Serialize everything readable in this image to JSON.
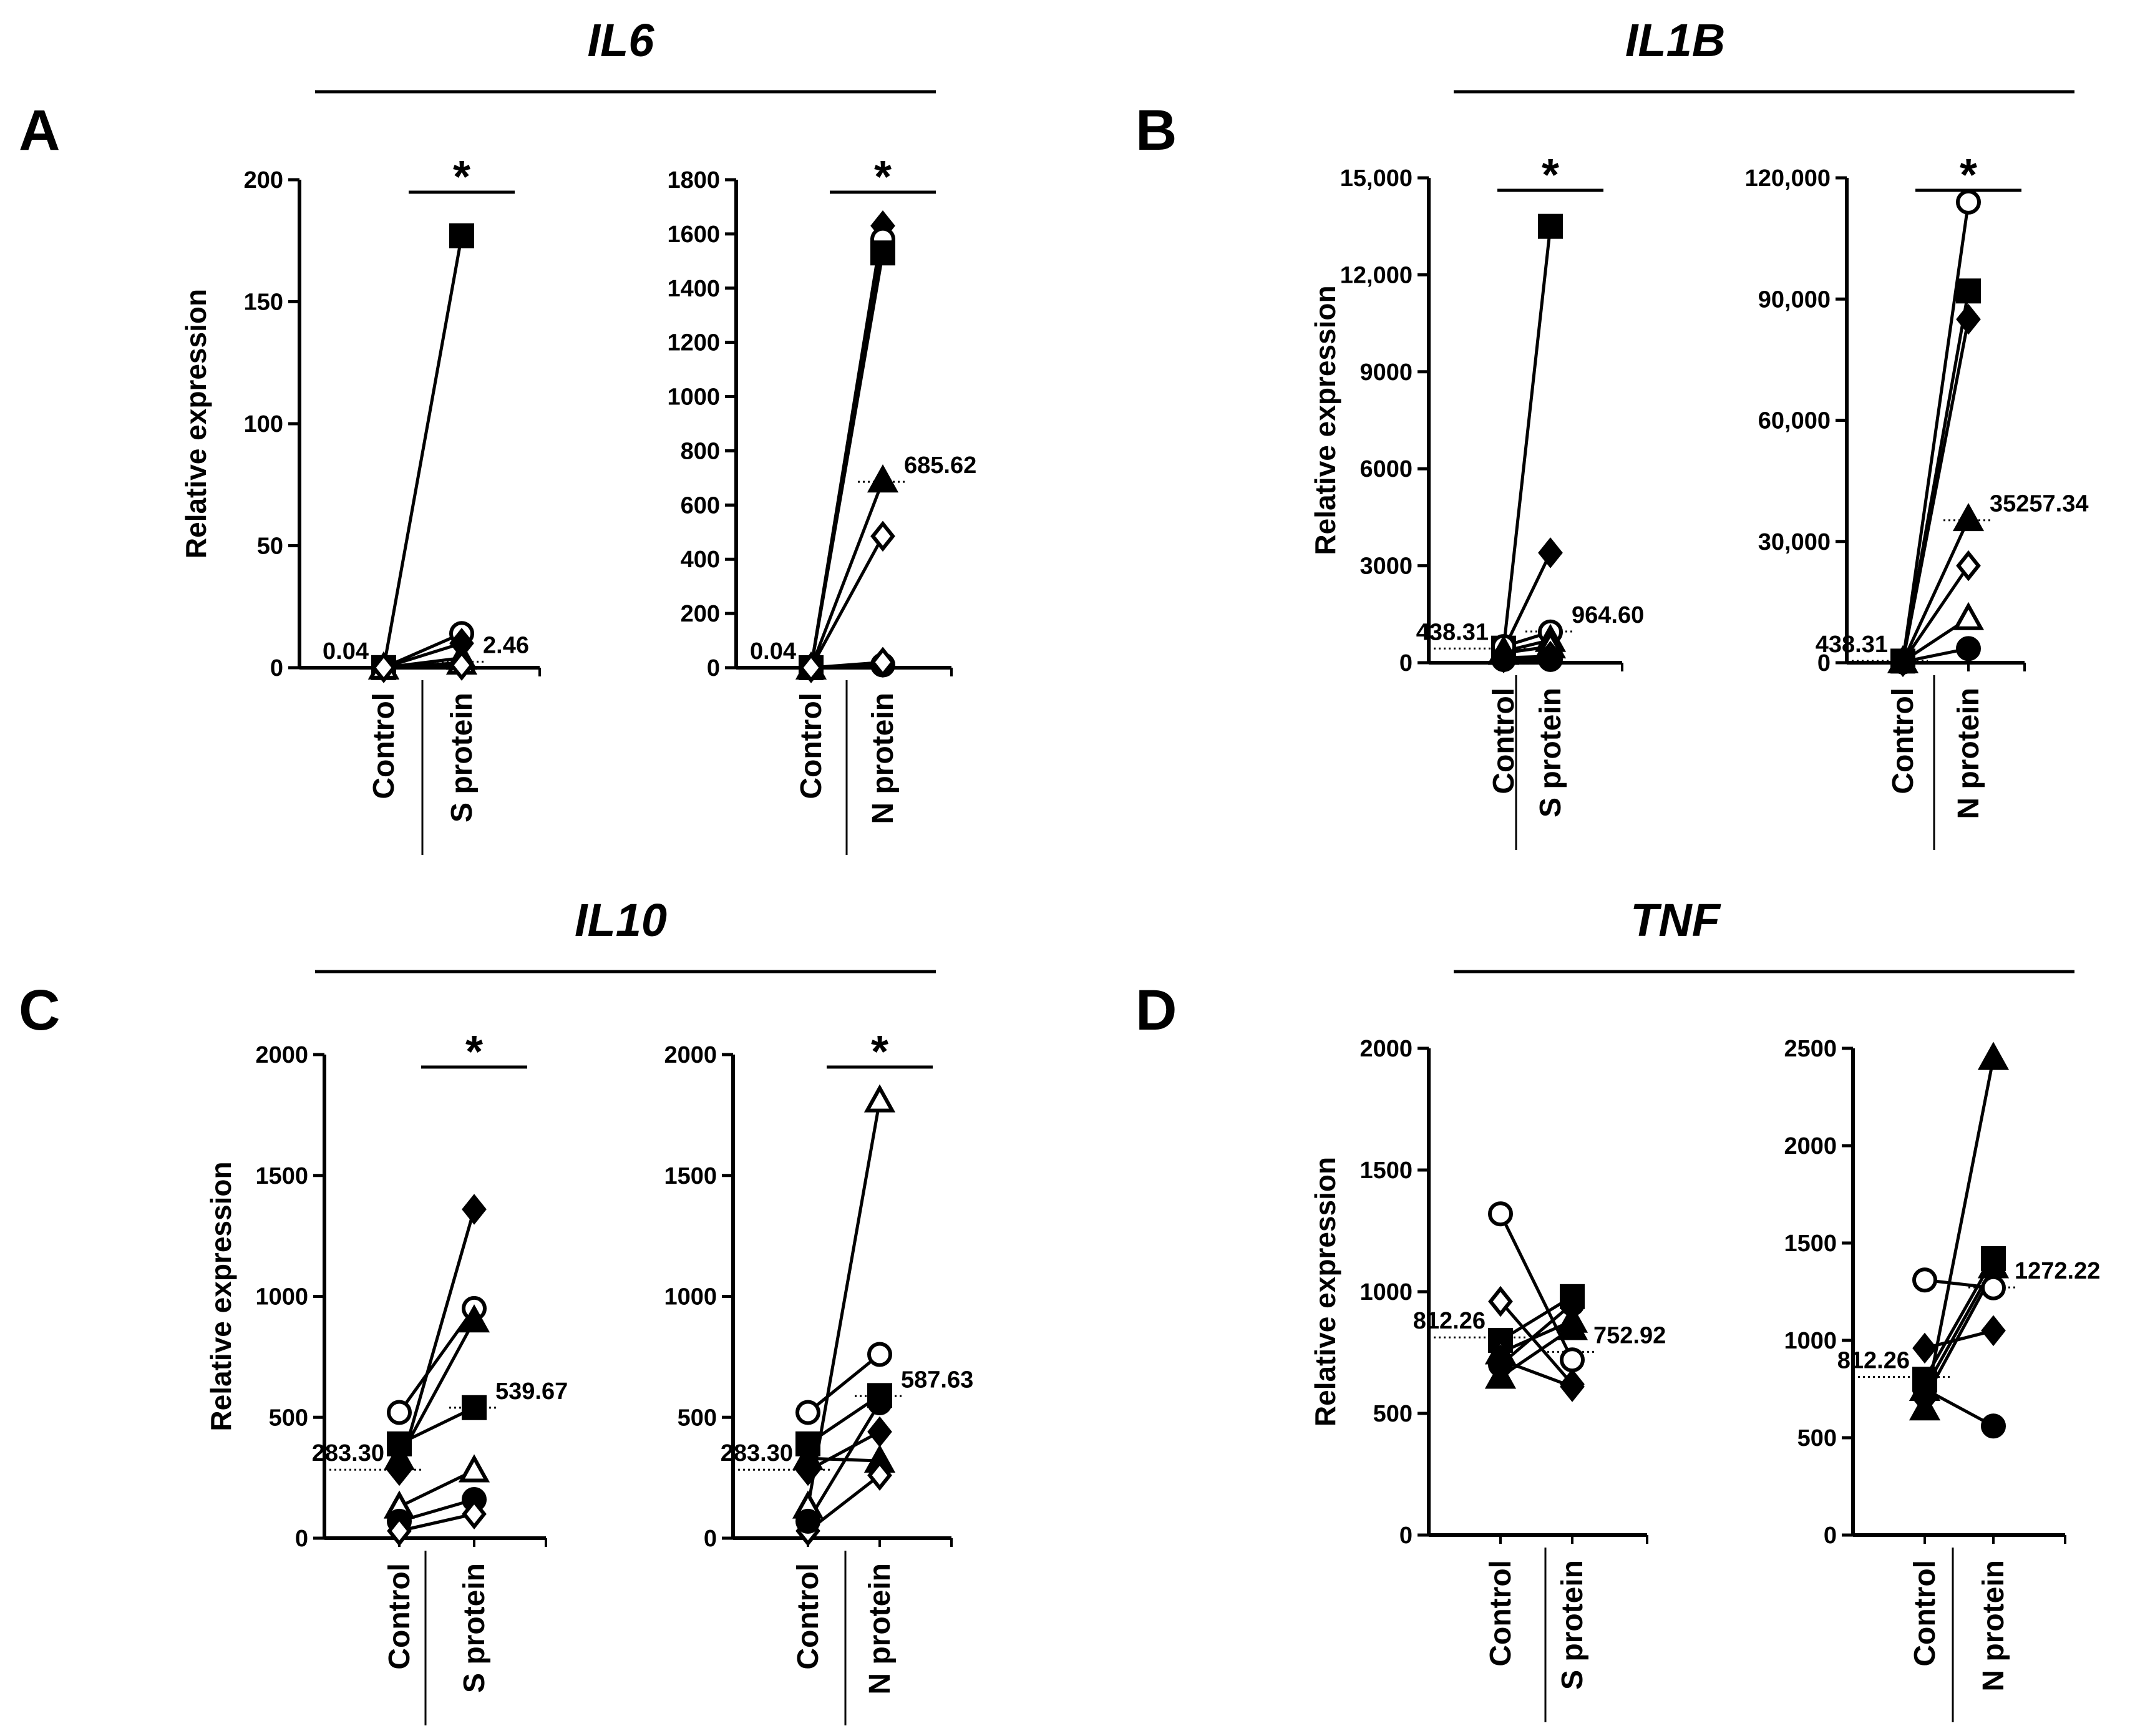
{
  "colors": {
    "ink": "#000000",
    "background": "#ffffff"
  },
  "figure": {
    "groups": [
      {
        "letter": "A",
        "gene": "IL6"
      },
      {
        "letter": "B",
        "gene": "IL1B"
      },
      {
        "letter": "C",
        "gene": "IL10"
      },
      {
        "letter": "D",
        "gene": "TNF"
      }
    ]
  },
  "chart_data": [
    {
      "type": "line",
      "panel": "A",
      "gene": "IL6",
      "ylabel": "Relative expression",
      "ylim": [
        0,
        200
      ],
      "yticks": [
        0,
        50,
        100,
        150,
        200
      ],
      "ytick_labels": [
        "0",
        "50",
        "100",
        "150",
        "200"
      ],
      "categories": [
        "Control",
        "S protein"
      ],
      "significance": "*",
      "annotations": {
        "control_median": "0.04",
        "treated_median": "2.46"
      },
      "series": [
        {
          "marker": "square-filled",
          "values": [
            0.05,
            177
          ]
        },
        {
          "marker": "circle-open",
          "values": [
            0.04,
            14
          ]
        },
        {
          "marker": "diamond-filled",
          "values": [
            0.03,
            10
          ]
        },
        {
          "marker": "triangle-filled",
          "values": [
            0.04,
            4
          ]
        },
        {
          "marker": "triangle-open",
          "values": [
            0.04,
            2
          ]
        },
        {
          "marker": "diamond-open",
          "values": [
            0.02,
            1
          ]
        }
      ]
    },
    {
      "type": "line",
      "panel": "A",
      "gene": "IL6",
      "ylabel": "",
      "ylim": [
        0,
        1800
      ],
      "yticks": [
        0,
        200,
        400,
        600,
        800,
        1000,
        1200,
        1400,
        1600,
        1800
      ],
      "ytick_labels": [
        "0",
        "200",
        "400",
        "600",
        "800",
        "1000",
        "1200",
        "1400",
        "1600",
        "1800"
      ],
      "categories": [
        "Control",
        "N protein"
      ],
      "significance": "*",
      "annotations": {
        "control_median": "0.04",
        "treated_median": "685.62"
      },
      "series": [
        {
          "marker": "diamond-filled",
          "values": [
            0.03,
            1630
          ]
        },
        {
          "marker": "circle-open",
          "values": [
            0.04,
            1580
          ]
        },
        {
          "marker": "square-filled",
          "values": [
            0.05,
            1530
          ]
        },
        {
          "marker": "triangle-filled",
          "values": [
            0.04,
            690
          ]
        },
        {
          "marker": "diamond-open",
          "values": [
            0.02,
            485
          ]
        },
        {
          "marker": "circle-filled",
          "values": [
            0.04,
            10
          ]
        },
        {
          "marker": "diamond-open",
          "values": [
            0.02,
            20
          ]
        }
      ]
    },
    {
      "type": "line",
      "panel": "B",
      "gene": "IL1B",
      "ylabel": "Relative expression",
      "ylim": [
        0,
        15000
      ],
      "yticks": [
        0,
        3000,
        6000,
        9000,
        12000,
        15000
      ],
      "ytick_labels": [
        "0",
        "3000",
        "6000",
        "9000",
        "12,000",
        "15,000"
      ],
      "categories": [
        "Control",
        "S protein"
      ],
      "significance": "*",
      "annotations": {
        "control_median": "438.31",
        "treated_median": "964.60"
      },
      "series": [
        {
          "marker": "square-filled",
          "values": [
            450,
            13500
          ]
        },
        {
          "marker": "diamond-filled",
          "values": [
            400,
            3400
          ]
        },
        {
          "marker": "circle-open",
          "values": [
            500,
            950
          ]
        },
        {
          "marker": "triangle-filled",
          "values": [
            350,
            700
          ]
        },
        {
          "marker": "triangle-open",
          "values": [
            300,
            500
          ]
        },
        {
          "marker": "diamond-open",
          "values": [
            150,
            200
          ]
        },
        {
          "marker": "circle-filled",
          "values": [
            100,
            100
          ]
        }
      ]
    },
    {
      "type": "line",
      "panel": "B",
      "gene": "IL1B",
      "ylabel": "",
      "ylim": [
        0,
        120000
      ],
      "yticks": [
        0,
        30000,
        60000,
        90000,
        120000
      ],
      "ytick_labels": [
        "0",
        "30,000",
        "60,000",
        "90,000",
        "120,000"
      ],
      "categories": [
        "Control",
        "N protein"
      ],
      "significance": "*",
      "annotations": {
        "control_median": "438.31",
        "treated_median": "35257.34"
      },
      "series": [
        {
          "marker": "circle-open",
          "values": [
            450,
            114000
          ]
        },
        {
          "marker": "square-filled",
          "values": [
            400,
            92000
          ]
        },
        {
          "marker": "diamond-filled",
          "values": [
            350,
            85000
          ]
        },
        {
          "marker": "triangle-filled",
          "values": [
            300,
            35500
          ]
        },
        {
          "marker": "diamond-open",
          "values": [
            250,
            24000
          ]
        },
        {
          "marker": "triangle-open",
          "values": [
            300,
            11000
          ]
        },
        {
          "marker": "circle-filled",
          "values": [
            200,
            3500
          ]
        }
      ]
    },
    {
      "type": "line",
      "panel": "C",
      "gene": "IL10",
      "ylabel": "Relative expression",
      "ylim": [
        0,
        2000
      ],
      "yticks": [
        0,
        500,
        1000,
        1500,
        2000
      ],
      "ytick_labels": [
        "0",
        "500",
        "1000",
        "1500",
        "2000"
      ],
      "categories": [
        "Control",
        "S protein"
      ],
      "significance": "*",
      "annotations": {
        "control_median": "283.30",
        "treated_median": "539.67"
      },
      "series": [
        {
          "marker": "diamond-filled",
          "values": [
            280,
            1360
          ]
        },
        {
          "marker": "circle-open",
          "values": [
            520,
            950
          ]
        },
        {
          "marker": "triangle-filled",
          "values": [
            330,
            900
          ]
        },
        {
          "marker": "square-filled",
          "values": [
            390,
            540
          ]
        },
        {
          "marker": "triangle-open",
          "values": [
            130,
            280
          ]
        },
        {
          "marker": "circle-filled",
          "values": [
            70,
            160
          ]
        },
        {
          "marker": "diamond-open",
          "values": [
            30,
            100
          ]
        }
      ]
    },
    {
      "type": "line",
      "panel": "C",
      "gene": "IL10",
      "ylabel": "",
      "ylim": [
        0,
        2000
      ],
      "yticks": [
        0,
        500,
        1000,
        1500,
        2000
      ],
      "ytick_labels": [
        "0",
        "500",
        "1000",
        "1500",
        "2000"
      ],
      "categories": [
        "Control",
        "N protein"
      ],
      "significance": "*",
      "annotations": {
        "control_median": "283.30",
        "treated_median": "587.63"
      },
      "series": [
        {
          "marker": "triangle-open",
          "values": [
            130,
            1810
          ]
        },
        {
          "marker": "circle-open",
          "values": [
            520,
            760
          ]
        },
        {
          "marker": "square-filled",
          "values": [
            390,
            590
          ]
        },
        {
          "marker": "diamond-filled",
          "values": [
            280,
            440
          ]
        },
        {
          "marker": "triangle-filled",
          "values": [
            330,
            320
          ]
        },
        {
          "marker": "diamond-open",
          "values": [
            30,
            260
          ]
        },
        {
          "marker": "circle-filled",
          "values": [
            70,
            560
          ]
        }
      ]
    },
    {
      "type": "line",
      "panel": "D",
      "gene": "TNF",
      "ylabel": "Relative expression",
      "ylim": [
        0,
        2000
      ],
      "yticks": [
        0,
        500,
        1000,
        1500,
        2000
      ],
      "ytick_labels": [
        "0",
        "500",
        "1000",
        "1500",
        "2000"
      ],
      "categories": [
        "Control",
        "S protein"
      ],
      "significance": "",
      "annotations": {
        "control_median": "812.26",
        "treated_median": "752.92"
      },
      "series": [
        {
          "marker": "circle-open",
          "values": [
            1320,
            720
          ]
        },
        {
          "marker": "diamond-open",
          "values": [
            960,
            620
          ]
        },
        {
          "marker": "square-filled",
          "values": [
            800,
            980
          ]
        },
        {
          "marker": "triangle-open",
          "values": [
            750,
            880
          ]
        },
        {
          "marker": "circle-filled",
          "values": [
            700,
            950
          ]
        },
        {
          "marker": "triangle-filled",
          "values": [
            650,
            850
          ]
        },
        {
          "marker": "diamond-filled",
          "values": [
            720,
            610
          ]
        }
      ]
    },
    {
      "type": "line",
      "panel": "D",
      "gene": "TNF",
      "ylabel": "",
      "ylim": [
        0,
        2500
      ],
      "yticks": [
        0,
        500,
        1000,
        1500,
        2000,
        2500
      ],
      "ytick_labels": [
        "0",
        "500",
        "1000",
        "1500",
        "2000",
        "2500"
      ],
      "categories": [
        "Control",
        "N protein"
      ],
      "significance": "",
      "annotations": {
        "control_median": "812.26",
        "treated_median": "1272.22"
      },
      "series": [
        {
          "marker": "triangle-filled",
          "values": [
            650,
            2450
          ]
        },
        {
          "marker": "square-filled",
          "values": [
            800,
            1420
          ]
        },
        {
          "marker": "triangle-open",
          "values": [
            750,
            1380
          ]
        },
        {
          "marker": "diamond-filled",
          "values": [
            700,
            1350
          ]
        },
        {
          "marker": "circle-open",
          "values": [
            1310,
            1270
          ]
        },
        {
          "marker": "diamond-filled",
          "values": [
            960,
            1050
          ]
        },
        {
          "marker": "circle-filled",
          "values": [
            750,
            560
          ]
        }
      ]
    }
  ]
}
